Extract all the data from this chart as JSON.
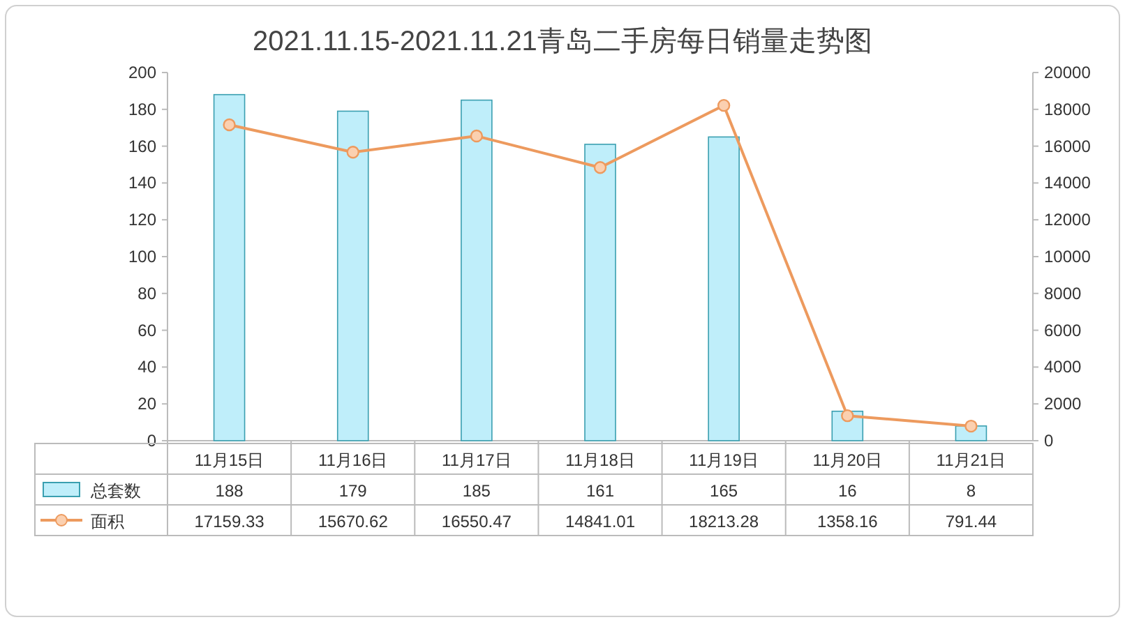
{
  "chart_data": {
    "type": "bar",
    "title": "2021.11.15-2021.11.21青岛二手房每日销量走势图",
    "categories": [
      "11月15日",
      "11月16日",
      "11月17日",
      "11月18日",
      "11月19日",
      "11月20日",
      "11月21日"
    ],
    "series": [
      {
        "name": "总套数",
        "color": "#bfeefa",
        "values": [
          188,
          179,
          185,
          161,
          165,
          16,
          8
        ]
      },
      {
        "name": "面积",
        "type": "line",
        "axis": "y2",
        "color": "#ed9a5e",
        "values": [
          17159.33,
          15670.62,
          16550.47,
          14841.01,
          18213.28,
          1358.16,
          791.44
        ]
      }
    ],
    "ylim": [
      0,
      200
    ],
    "yticks": [
      0,
      20,
      40,
      60,
      80,
      100,
      120,
      140,
      160,
      180,
      200
    ],
    "y2lim": [
      0,
      20000
    ],
    "y2ticks": [
      0,
      2000,
      4000,
      6000,
      8000,
      10000,
      12000,
      14000,
      16000,
      18000,
      20000
    ],
    "marker": "circle",
    "data_labels": true,
    "legend": "bottom left"
  }
}
